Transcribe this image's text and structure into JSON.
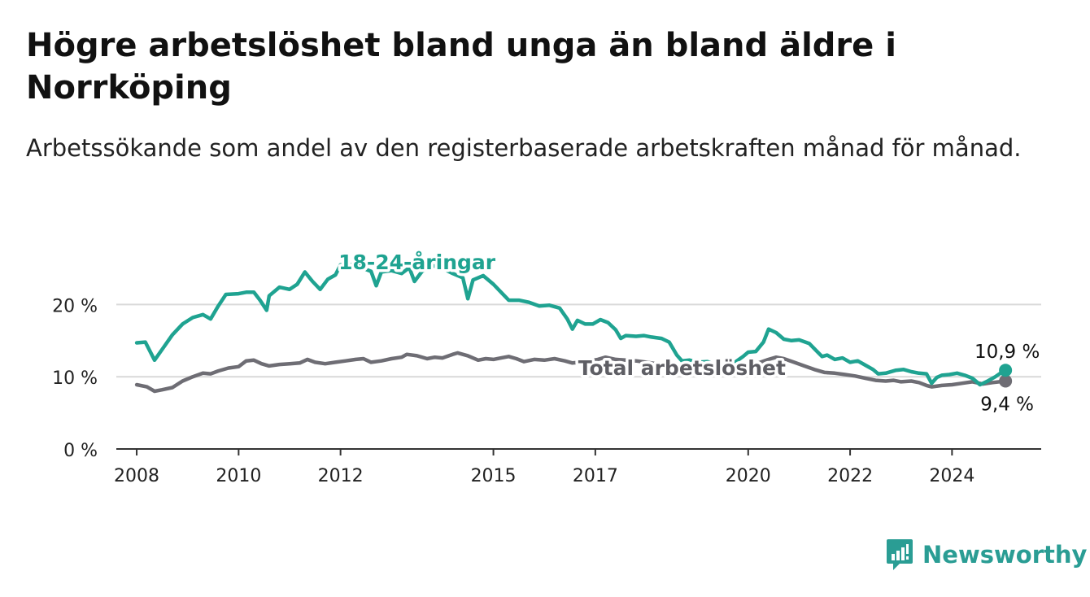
{
  "title": "Högre arbetslöshet bland unga än bland äldre i Norrköping",
  "subtitle": "Arbetssökande som andel av den registerbaserade arbetskraften månad för månad.",
  "brand": {
    "name": "Newsworthy",
    "icon": "newsworthy-logo-icon",
    "color": "#2a9d94"
  },
  "chart_data": {
    "type": "line",
    "title": "Högre arbetslöshet bland unga än bland äldre i Norrköping",
    "subtitle": "Arbetssökande som andel av den registerbaserade arbetskraften månad för månad.",
    "xlabel": "",
    "ylabel": "",
    "xlim": [
      2007.6,
      2025.75
    ],
    "ylim": [
      0,
      25
    ],
    "x_ticks": [
      2008,
      2010,
      2012,
      2015,
      2017,
      2020,
      2022,
      2024
    ],
    "x_tick_labels": [
      "2008",
      "2010",
      "2012",
      "2015",
      "2017",
      "2020",
      "2022",
      "2024"
    ],
    "y_ticks": [
      0,
      10,
      20
    ],
    "y_tick_labels": [
      "0 %",
      "10 %",
      "20 %"
    ],
    "grid": true,
    "legend": "inline labels",
    "series": [
      {
        "name": "18-24-åringar",
        "color": "#1fa391",
        "end_label": "10,9 %",
        "points": [
          [
            2008.0,
            14.7
          ],
          [
            2008.17,
            14.8
          ],
          [
            2008.35,
            12.3
          ],
          [
            2008.5,
            13.8
          ],
          [
            2008.7,
            15.8
          ],
          [
            2008.9,
            17.3
          ],
          [
            2009.1,
            18.2
          ],
          [
            2009.3,
            18.6
          ],
          [
            2009.45,
            18.0
          ],
          [
            2009.6,
            19.8
          ],
          [
            2009.75,
            21.4
          ],
          [
            2010.0,
            21.5
          ],
          [
            2010.15,
            21.7
          ],
          [
            2010.3,
            21.7
          ],
          [
            2010.42,
            20.6
          ],
          [
            2010.55,
            19.2
          ],
          [
            2010.6,
            21.2
          ],
          [
            2010.8,
            22.4
          ],
          [
            2011.0,
            22.1
          ],
          [
            2011.15,
            22.8
          ],
          [
            2011.3,
            24.5
          ],
          [
            2011.45,
            23.2
          ],
          [
            2011.6,
            22.1
          ],
          [
            2011.75,
            23.5
          ],
          [
            2011.9,
            24.1
          ],
          [
            2012.0,
            25.5
          ],
          [
            2012.1,
            25.6
          ],
          [
            2012.2,
            25.5
          ],
          [
            2012.35,
            25.9
          ],
          [
            2012.45,
            25.0
          ],
          [
            2012.6,
            24.6
          ],
          [
            2012.7,
            22.6
          ],
          [
            2012.8,
            24.5
          ],
          [
            2013.0,
            24.7
          ],
          [
            2013.2,
            24.3
          ],
          [
            2013.35,
            25.1
          ],
          [
            2013.45,
            23.2
          ],
          [
            2013.6,
            24.6
          ],
          [
            2013.8,
            25.4
          ],
          [
            2014.0,
            25.0
          ],
          [
            2014.2,
            24.3
          ],
          [
            2014.4,
            23.7
          ],
          [
            2014.5,
            20.8
          ],
          [
            2014.6,
            23.4
          ],
          [
            2014.8,
            24.0
          ],
          [
            2015.0,
            22.8
          ],
          [
            2015.15,
            21.7
          ],
          [
            2015.3,
            20.6
          ],
          [
            2015.4,
            20.6
          ],
          [
            2015.5,
            20.6
          ],
          [
            2015.7,
            20.3
          ],
          [
            2015.9,
            19.8
          ],
          [
            2016.1,
            19.9
          ],
          [
            2016.3,
            19.5
          ],
          [
            2016.45,
            18.0
          ],
          [
            2016.55,
            16.6
          ],
          [
            2016.65,
            17.8
          ],
          [
            2016.8,
            17.3
          ],
          [
            2016.95,
            17.3
          ],
          [
            2017.1,
            17.9
          ],
          [
            2017.25,
            17.5
          ],
          [
            2017.4,
            16.5
          ],
          [
            2017.5,
            15.3
          ],
          [
            2017.6,
            15.7
          ],
          [
            2017.8,
            15.6
          ],
          [
            2017.95,
            15.7
          ],
          [
            2018.1,
            15.5
          ],
          [
            2018.3,
            15.3
          ],
          [
            2018.45,
            14.8
          ],
          [
            2018.6,
            13.0
          ],
          [
            2018.7,
            12.2
          ],
          [
            2018.85,
            12.3
          ],
          [
            2019.0,
            12.0
          ],
          [
            2019.2,
            12.1
          ],
          [
            2019.4,
            11.5
          ],
          [
            2019.55,
            11.2
          ],
          [
            2019.7,
            11.8
          ],
          [
            2019.9,
            12.8
          ],
          [
            2020.0,
            13.4
          ],
          [
            2020.15,
            13.5
          ],
          [
            2020.3,
            14.8
          ],
          [
            2020.4,
            16.6
          ],
          [
            2020.55,
            16.1
          ],
          [
            2020.7,
            15.2
          ],
          [
            2020.85,
            15.0
          ],
          [
            2021.0,
            15.1
          ],
          [
            2021.2,
            14.6
          ],
          [
            2021.35,
            13.5
          ],
          [
            2021.45,
            12.8
          ],
          [
            2021.55,
            13.0
          ],
          [
            2021.7,
            12.4
          ],
          [
            2021.85,
            12.6
          ],
          [
            2022.0,
            12.0
          ],
          [
            2022.15,
            12.2
          ],
          [
            2022.3,
            11.6
          ],
          [
            2022.45,
            11.0
          ],
          [
            2022.55,
            10.4
          ],
          [
            2022.7,
            10.5
          ],
          [
            2022.9,
            10.9
          ],
          [
            2023.05,
            11.0
          ],
          [
            2023.2,
            10.7
          ],
          [
            2023.35,
            10.5
          ],
          [
            2023.5,
            10.4
          ],
          [
            2023.6,
            9.1
          ],
          [
            2023.7,
            9.9
          ],
          [
            2023.8,
            10.2
          ],
          [
            2023.95,
            10.3
          ],
          [
            2024.1,
            10.5
          ],
          [
            2024.25,
            10.2
          ],
          [
            2024.4,
            9.8
          ],
          [
            2024.55,
            8.9
          ],
          [
            2024.7,
            9.4
          ],
          [
            2024.85,
            10.0
          ],
          [
            2024.95,
            10.5
          ],
          [
            2025.05,
            10.9
          ]
        ]
      },
      {
        "name": "Total arbetslöshet",
        "color": "#6e6d74",
        "end_label": "9,4 %",
        "points": [
          [
            2008.0,
            8.9
          ],
          [
            2008.2,
            8.6
          ],
          [
            2008.35,
            8.0
          ],
          [
            2008.5,
            8.2
          ],
          [
            2008.7,
            8.5
          ],
          [
            2008.9,
            9.4
          ],
          [
            2009.1,
            10.0
          ],
          [
            2009.3,
            10.5
          ],
          [
            2009.45,
            10.4
          ],
          [
            2009.6,
            10.8
          ],
          [
            2009.8,
            11.2
          ],
          [
            2010.0,
            11.4
          ],
          [
            2010.15,
            12.2
          ],
          [
            2010.3,
            12.3
          ],
          [
            2010.45,
            11.8
          ],
          [
            2010.6,
            11.5
          ],
          [
            2010.8,
            11.7
          ],
          [
            2011.0,
            11.8
          ],
          [
            2011.2,
            11.9
          ],
          [
            2011.35,
            12.4
          ],
          [
            2011.5,
            12.0
          ],
          [
            2011.7,
            11.8
          ],
          [
            2011.9,
            12.0
          ],
          [
            2012.1,
            12.2
          ],
          [
            2012.3,
            12.4
          ],
          [
            2012.45,
            12.5
          ],
          [
            2012.6,
            12.0
          ],
          [
            2012.8,
            12.2
          ],
          [
            2013.0,
            12.5
          ],
          [
            2013.2,
            12.7
          ],
          [
            2013.3,
            13.1
          ],
          [
            2013.5,
            12.9
          ],
          [
            2013.7,
            12.5
          ],
          [
            2013.85,
            12.7
          ],
          [
            2014.0,
            12.6
          ],
          [
            2014.2,
            13.1
          ],
          [
            2014.3,
            13.3
          ],
          [
            2014.5,
            12.9
          ],
          [
            2014.7,
            12.3
          ],
          [
            2014.85,
            12.5
          ],
          [
            2015.0,
            12.4
          ],
          [
            2015.15,
            12.6
          ],
          [
            2015.3,
            12.8
          ],
          [
            2015.45,
            12.5
          ],
          [
            2015.6,
            12.1
          ],
          [
            2015.8,
            12.4
          ],
          [
            2016.0,
            12.3
          ],
          [
            2016.2,
            12.5
          ],
          [
            2016.4,
            12.2
          ],
          [
            2016.55,
            11.9
          ],
          [
            2016.7,
            12.0
          ],
          [
            2016.9,
            12.2
          ],
          [
            2017.05,
            12.4
          ],
          [
            2017.2,
            12.7
          ],
          [
            2017.4,
            12.4
          ],
          [
            2017.6,
            12.3
          ],
          [
            2017.8,
            12.2
          ],
          [
            2018.0,
            12.0
          ],
          [
            2018.2,
            11.8
          ],
          [
            2018.4,
            11.6
          ],
          [
            2018.6,
            11.4
          ],
          [
            2018.8,
            11.2
          ],
          [
            2019.0,
            11.0
          ],
          [
            2019.2,
            10.9
          ],
          [
            2019.4,
            10.8
          ],
          [
            2019.6,
            10.8
          ],
          [
            2019.8,
            11.0
          ],
          [
            2020.0,
            11.4
          ],
          [
            2020.2,
            11.9
          ],
          [
            2020.4,
            12.4
          ],
          [
            2020.55,
            12.7
          ],
          [
            2020.7,
            12.5
          ],
          [
            2020.9,
            12.0
          ],
          [
            2021.1,
            11.5
          ],
          [
            2021.3,
            11.0
          ],
          [
            2021.5,
            10.6
          ],
          [
            2021.7,
            10.5
          ],
          [
            2021.9,
            10.3
          ],
          [
            2022.1,
            10.1
          ],
          [
            2022.3,
            9.8
          ],
          [
            2022.5,
            9.5
          ],
          [
            2022.7,
            9.4
          ],
          [
            2022.85,
            9.5
          ],
          [
            2023.0,
            9.3
          ],
          [
            2023.2,
            9.4
          ],
          [
            2023.35,
            9.2
          ],
          [
            2023.5,
            8.8
          ],
          [
            2023.6,
            8.6
          ],
          [
            2023.8,
            8.8
          ],
          [
            2024.0,
            8.9
          ],
          [
            2024.2,
            9.1
          ],
          [
            2024.4,
            9.3
          ],
          [
            2024.6,
            9.0
          ],
          [
            2024.8,
            9.2
          ],
          [
            2025.05,
            9.4
          ]
        ]
      }
    ]
  }
}
